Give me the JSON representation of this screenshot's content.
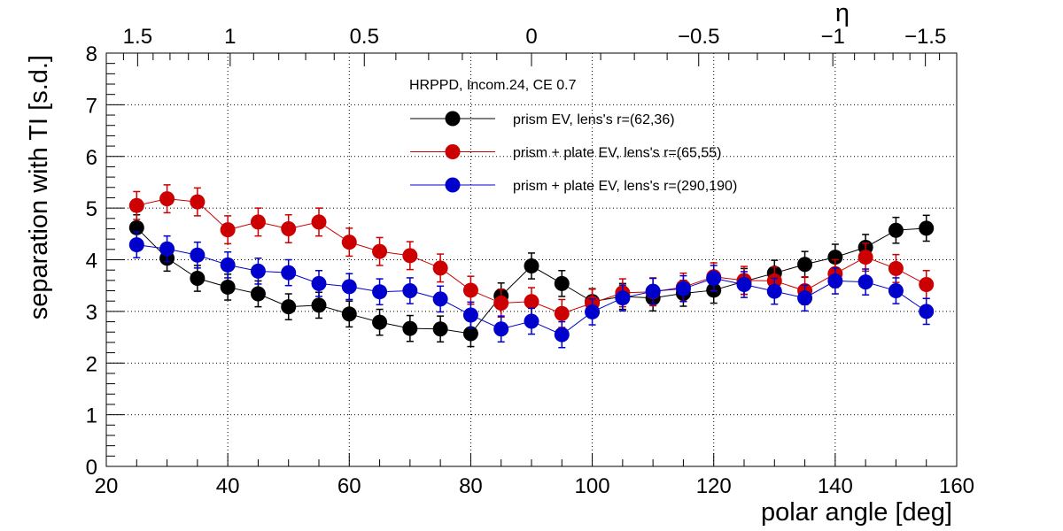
{
  "chart_data": {
    "type": "scatter",
    "title": "",
    "xlabel": "polar angle [deg]",
    "ylabel": "separation with TI [s.d.]",
    "xlim": [
      20,
      160
    ],
    "ylim": [
      0,
      8
    ],
    "x_ticks": [
      20,
      40,
      60,
      80,
      100,
      120,
      140,
      160
    ],
    "y_ticks": [
      0,
      1,
      2,
      3,
      4,
      5,
      6,
      7,
      8
    ],
    "x_tick_labels": [
      "20",
      "40",
      "60",
      "80",
      "100",
      "120",
      "140",
      "160"
    ],
    "y_tick_labels": [
      "0",
      "1",
      "2",
      "3",
      "4",
      "5",
      "6",
      "7",
      "8"
    ],
    "grid": true,
    "top_axis": {
      "label": "η",
      "ticks": [
        {
          "eta": 1.5,
          "label": "1.5"
        },
        {
          "eta": 1,
          "label": "1"
        },
        {
          "eta": 0.5,
          "label": "0.5"
        },
        {
          "eta": 0,
          "label": "0"
        },
        {
          "eta": -0.5,
          "label": "−0.5"
        },
        {
          "eta": -1,
          "label": "−1"
        },
        {
          "eta": -1.5,
          "label": "−1.5"
        }
      ]
    },
    "legend": {
      "header": "HRPPD, Incom.24, CE 0.7",
      "placement": "top-center"
    },
    "x": [
      25,
      30,
      35,
      40,
      45,
      50,
      55,
      60,
      65,
      70,
      75,
      80,
      85,
      90,
      95,
      100,
      105,
      110,
      115,
      120,
      125,
      130,
      135,
      140,
      145,
      150,
      155
    ],
    "series": [
      {
        "name": "prism EV, lens's r=(62,36)",
        "color": "#000000",
        "values": [
          4.62,
          4.03,
          3.64,
          3.47,
          3.34,
          3.09,
          3.12,
          2.95,
          2.79,
          2.67,
          2.66,
          2.57,
          3.3,
          3.88,
          3.54,
          3.19,
          3.29,
          3.26,
          3.35,
          3.41,
          3.58,
          3.74,
          3.91,
          4.05,
          4.24,
          4.57,
          4.61
        ],
        "errors": [
          0.25,
          0.25,
          0.25,
          0.25,
          0.25,
          0.25,
          0.25,
          0.25,
          0.25,
          0.25,
          0.25,
          0.25,
          0.25,
          0.25,
          0.25,
          0.25,
          0.25,
          0.25,
          0.25,
          0.25,
          0.25,
          0.25,
          0.25,
          0.25,
          0.25,
          0.25,
          0.25
        ]
      },
      {
        "name": "prism + plate EV, lens's r=(65,55)",
        "color": "#cc0000",
        "values": [
          5.05,
          5.18,
          5.12,
          4.58,
          4.73,
          4.6,
          4.73,
          4.34,
          4.16,
          4.08,
          3.84,
          3.41,
          3.16,
          3.19,
          2.96,
          3.16,
          3.36,
          3.38,
          3.47,
          3.67,
          3.6,
          3.59,
          3.4,
          3.73,
          4.05,
          3.83,
          3.52
        ],
        "errors": [
          0.27,
          0.27,
          0.27,
          0.27,
          0.27,
          0.27,
          0.27,
          0.27,
          0.27,
          0.27,
          0.27,
          0.27,
          0.27,
          0.27,
          0.27,
          0.27,
          0.27,
          0.27,
          0.27,
          0.27,
          0.27,
          0.27,
          0.27,
          0.27,
          0.27,
          0.27,
          0.27
        ]
      },
      {
        "name": "prism + plate EV, lens's r=(290,190)",
        "color": "#0000cc",
        "values": [
          4.29,
          4.21,
          4.09,
          3.9,
          3.78,
          3.75,
          3.54,
          3.48,
          3.38,
          3.4,
          3.24,
          2.93,
          2.66,
          2.81,
          2.55,
          2.99,
          3.26,
          3.39,
          3.44,
          3.64,
          3.52,
          3.39,
          3.26,
          3.59,
          3.57,
          3.4,
          3.0
        ],
        "errors": [
          0.25,
          0.25,
          0.25,
          0.25,
          0.25,
          0.25,
          0.25,
          0.25,
          0.25,
          0.25,
          0.25,
          0.25,
          0.25,
          0.25,
          0.25,
          0.25,
          0.25,
          0.25,
          0.25,
          0.25,
          0.25,
          0.25,
          0.25,
          0.25,
          0.25,
          0.25,
          0.25
        ]
      }
    ]
  }
}
